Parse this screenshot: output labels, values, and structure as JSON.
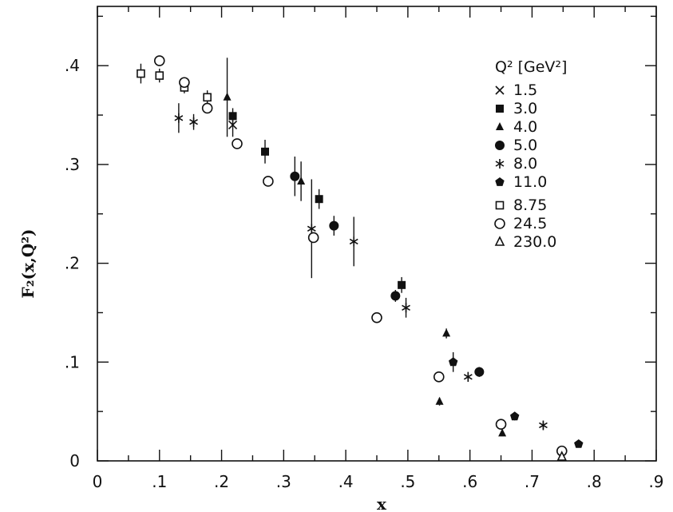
{
  "chart_data": {
    "type": "scatter",
    "xlabel": "x",
    "ylabel": "F₂(x,Q²)",
    "xlim": [
      0,
      0.9
    ],
    "ylim": [
      0,
      0.46
    ],
    "x_ticks": [
      0,
      0.1,
      0.2,
      0.3,
      0.4,
      0.5,
      0.6,
      0.7,
      0.8,
      0.9
    ],
    "x_tick_labels": [
      "0",
      ".1",
      ".2",
      ".3",
      ".4",
      ".5",
      ".6",
      ".7",
      ".8",
      ".9"
    ],
    "y_ticks": [
      0,
      0.1,
      0.2,
      0.3,
      0.4
    ],
    "y_tick_labels": [
      "0",
      ".1",
      ".2",
      ".3",
      ".4"
    ],
    "grid": false,
    "legend_title": "Q² [GeV²]",
    "legend_position": "top-right",
    "series": [
      {
        "name": "1.5",
        "marker": "x",
        "points": [
          {
            "x": 0.218,
            "y": 0.34,
            "err": 0.012
          }
        ]
      },
      {
        "name": "3.0",
        "marker": "square-filled",
        "points": [
          {
            "x": 0.218,
            "y": 0.349,
            "err": 0.008
          },
          {
            "x": 0.27,
            "y": 0.313,
            "err": 0.012
          },
          {
            "x": 0.357,
            "y": 0.265,
            "err": 0.01
          },
          {
            "x": 0.49,
            "y": 0.178,
            "err": 0.008
          }
        ]
      },
      {
        "name": "4.0",
        "marker": "triangle-filled",
        "points": [
          {
            "x": 0.209,
            "y": 0.368,
            "err": 0.04
          },
          {
            "x": 0.328,
            "y": 0.283,
            "err": 0.02
          },
          {
            "x": 0.551,
            "y": 0.06,
            "err": 0.004
          },
          {
            "x": 0.562,
            "y": 0.129,
            "err": 0.005
          },
          {
            "x": 0.652,
            "y": 0.028,
            "err": 0.003
          }
        ]
      },
      {
        "name": "5.0",
        "marker": "circle-filled",
        "points": [
          {
            "x": 0.318,
            "y": 0.288,
            "err": 0.02
          },
          {
            "x": 0.381,
            "y": 0.238,
            "err": 0.01
          },
          {
            "x": 0.48,
            "y": 0.167,
            "err": 0.006
          },
          {
            "x": 0.615,
            "y": 0.09,
            "err": 0.005
          }
        ]
      },
      {
        "name": "8.0",
        "marker": "asterisk",
        "points": [
          {
            "x": 0.131,
            "y": 0.347,
            "err": 0.015
          },
          {
            "x": 0.155,
            "y": 0.343,
            "err": 0.008
          },
          {
            "x": 0.345,
            "y": 0.235,
            "err": 0.05
          },
          {
            "x": 0.413,
            "y": 0.222,
            "err": 0.025
          },
          {
            "x": 0.497,
            "y": 0.155,
            "err": 0.01
          },
          {
            "x": 0.597,
            "y": 0.085,
            "err": 0.005
          },
          {
            "x": 0.718,
            "y": 0.036,
            "err": 0.004
          }
        ]
      },
      {
        "name": "11.0",
        "marker": "pentagon-filled",
        "points": [
          {
            "x": 0.573,
            "y": 0.1,
            "err": 0.01
          },
          {
            "x": 0.672,
            "y": 0.045,
            "err": 0.004
          },
          {
            "x": 0.775,
            "y": 0.017,
            "err": 0.003
          }
        ]
      },
      {
        "name": "8.75",
        "marker": "square-open",
        "points": [
          {
            "x": 0.07,
            "y": 0.392,
            "err": 0.01
          },
          {
            "x": 0.1,
            "y": 0.39,
            "err": 0.007
          },
          {
            "x": 0.14,
            "y": 0.378,
            "err": 0.006
          },
          {
            "x": 0.177,
            "y": 0.368,
            "err": 0.007
          }
        ]
      },
      {
        "name": "24.5",
        "marker": "circle-open",
        "points": [
          {
            "x": 0.1,
            "y": 0.405,
            "err": 0.004
          },
          {
            "x": 0.14,
            "y": 0.383,
            "err": 0.004
          },
          {
            "x": 0.177,
            "y": 0.357,
            "err": 0.004
          },
          {
            "x": 0.225,
            "y": 0.321,
            "err": 0.004
          },
          {
            "x": 0.275,
            "y": 0.283,
            "err": 0.004
          },
          {
            "x": 0.348,
            "y": 0.226,
            "err": 0.004
          },
          {
            "x": 0.45,
            "y": 0.145,
            "err": 0.004
          },
          {
            "x": 0.55,
            "y": 0.085,
            "err": 0.004
          },
          {
            "x": 0.65,
            "y": 0.037,
            "err": 0.004
          },
          {
            "x": 0.748,
            "y": 0.01,
            "err": 0.003
          }
        ]
      },
      {
        "name": "230.0",
        "marker": "triangle-open",
        "points": [
          {
            "x": 0.748,
            "y": 0.004,
            "err": 0.002
          }
        ]
      }
    ]
  }
}
